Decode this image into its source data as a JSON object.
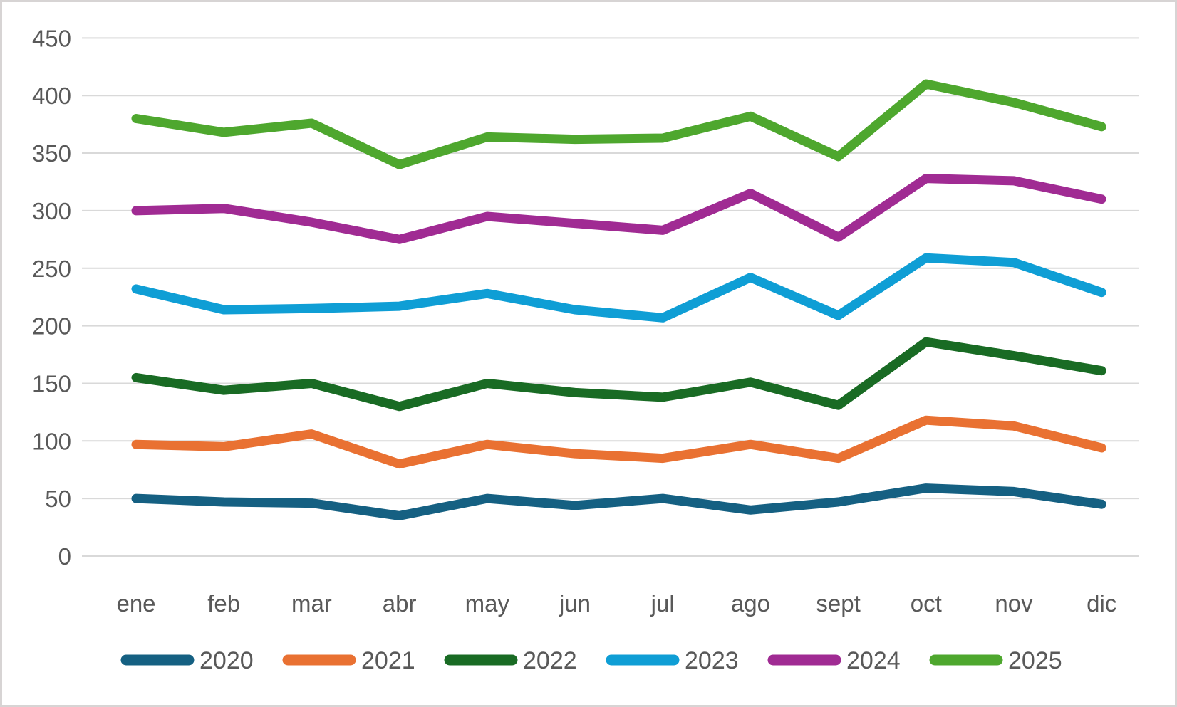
{
  "chart_data": {
    "type": "line",
    "title": "",
    "categories": [
      "ene",
      "feb",
      "mar",
      "abr",
      "may",
      "jun",
      "jul",
      "ago",
      "sept",
      "oct",
      "nov",
      "dic"
    ],
    "series": [
      {
        "name": "2020",
        "color": "#156082",
        "values": [
          50,
          47,
          46,
          35,
          50,
          44,
          50,
          40,
          47,
          59,
          56,
          45
        ]
      },
      {
        "name": "2021",
        "color": "#E97132",
        "values": [
          97,
          95,
          106,
          80,
          97,
          89,
          85,
          97,
          85,
          118,
          113,
          94
        ]
      },
      {
        "name": "2022",
        "color": "#196B24",
        "values": [
          155,
          144,
          150,
          130,
          150,
          142,
          138,
          151,
          131,
          186,
          174,
          161
        ]
      },
      {
        "name": "2023",
        "color": "#0F9ED5",
        "values": [
          232,
          214,
          215,
          217,
          228,
          214,
          207,
          242,
          209,
          259,
          255,
          229
        ]
      },
      {
        "name": "2024",
        "color": "#A02B93",
        "values": [
          300,
          302,
          290,
          275,
          295,
          289,
          283,
          315,
          277,
          328,
          326,
          310
        ]
      },
      {
        "name": "2025",
        "color": "#4EA72E",
        "values": [
          380,
          368,
          376,
          340,
          364,
          362,
          363,
          382,
          347,
          410,
          394,
          373
        ]
      }
    ],
    "y_axis": {
      "min": 0,
      "max": 450,
      "step": 50,
      "tick_labels": [
        "0",
        "50",
        "100",
        "150",
        "200",
        "250",
        "300",
        "350",
        "400",
        "450"
      ]
    },
    "x_axis": {
      "tick_labels": [
        "ene",
        "feb",
        "mar",
        "abr",
        "may",
        "jun",
        "jul",
        "ago",
        "sept",
        "oct",
        "nov",
        "dic"
      ]
    },
    "legend": {
      "position": "bottom",
      "entries": [
        "2020",
        "2021",
        "2022",
        "2023",
        "2024",
        "2025"
      ]
    },
    "grid": true,
    "style": {
      "gridline_color": "#D9D9D9",
      "axis_label_color": "#595959",
      "background_color": "#FFFFFF",
      "frame_border_color": "#D7D4D4"
    }
  }
}
